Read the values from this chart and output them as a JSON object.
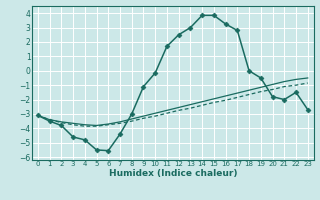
{
  "xlabel": "Humidex (Indice chaleur)",
  "bg_color": "#cce8e8",
  "grid_color": "#ffffff",
  "line_color": "#1a6b60",
  "xlim": [
    -0.5,
    23.5
  ],
  "ylim": [
    -6.2,
    4.5
  ],
  "xticks": [
    0,
    1,
    2,
    3,
    4,
    5,
    6,
    7,
    8,
    9,
    10,
    11,
    12,
    13,
    14,
    15,
    16,
    17,
    18,
    19,
    20,
    21,
    22,
    23
  ],
  "yticks": [
    -6,
    -5,
    -4,
    -3,
    -2,
    -1,
    0,
    1,
    2,
    3,
    4
  ],
  "line1_x": [
    0,
    1,
    2,
    3,
    4,
    5,
    6,
    7,
    8,
    9,
    10,
    11,
    12,
    13,
    14,
    15,
    16,
    17,
    18,
    19,
    20,
    21,
    22,
    23
  ],
  "line1_y": [
    -3.1,
    -3.5,
    -3.8,
    -4.6,
    -4.8,
    -5.5,
    -5.55,
    -4.4,
    -3.0,
    -1.1,
    -0.15,
    1.7,
    2.5,
    3.0,
    3.85,
    3.85,
    3.25,
    2.8,
    0.0,
    -0.5,
    -1.8,
    -2.0,
    -1.5,
    -2.7
  ],
  "line2_x": [
    0,
    1,
    2,
    3,
    4,
    5,
    6,
    7,
    8,
    9,
    10,
    11,
    12,
    13,
    14,
    15,
    16,
    17,
    18,
    19,
    20,
    21,
    22,
    23
  ],
  "line2_y": [
    -3.1,
    -3.4,
    -3.55,
    -3.65,
    -3.75,
    -3.8,
    -3.7,
    -3.55,
    -3.35,
    -3.15,
    -2.95,
    -2.75,
    -2.55,
    -2.35,
    -2.15,
    -1.95,
    -1.75,
    -1.55,
    -1.35,
    -1.15,
    -0.95,
    -0.75,
    -0.6,
    -0.5
  ],
  "line3_x": [
    0,
    1,
    2,
    3,
    4,
    5,
    6,
    7,
    8,
    9,
    10,
    11,
    12,
    13,
    14,
    15,
    16,
    17,
    18,
    19,
    20,
    21,
    22,
    23
  ],
  "line3_y": [
    -3.1,
    -3.4,
    -3.6,
    -3.75,
    -3.85,
    -3.85,
    -3.75,
    -3.65,
    -3.5,
    -3.3,
    -3.15,
    -2.95,
    -2.75,
    -2.6,
    -2.4,
    -2.2,
    -2.05,
    -1.85,
    -1.65,
    -1.45,
    -1.3,
    -1.1,
    -1.0,
    -0.85
  ]
}
